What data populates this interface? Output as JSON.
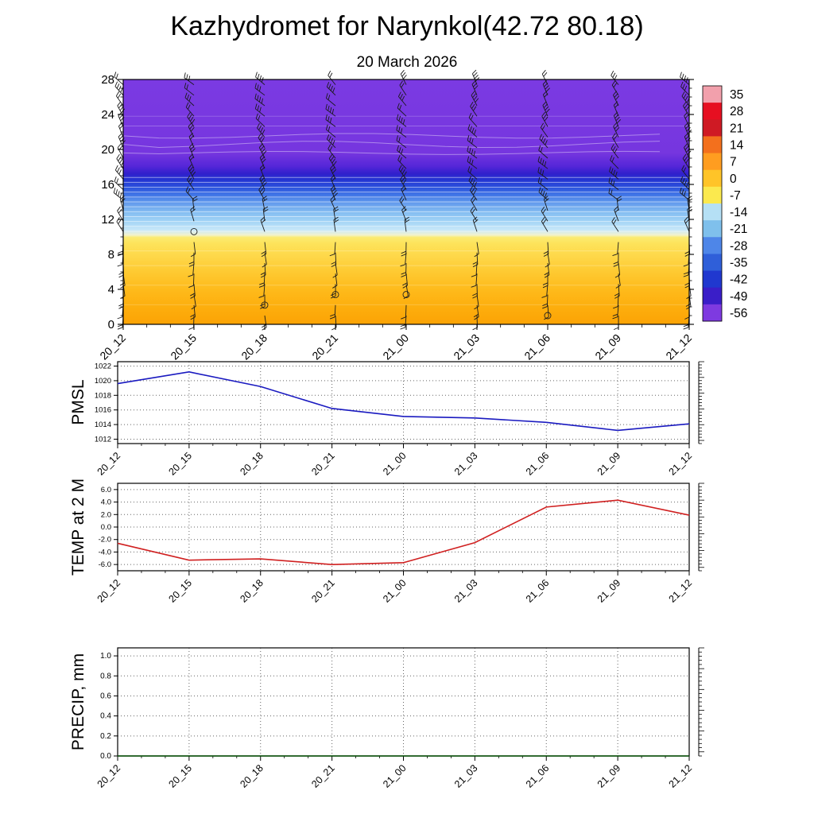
{
  "header": {
    "title": "Kazhydromet for Narynkol(42.72 80.18)",
    "subtitle": "20 March 2026"
  },
  "time_labels": [
    "20_12",
    "20_15",
    "20_18",
    "20_21",
    "21_00",
    "21_03",
    "21_06",
    "21_09",
    "21_12"
  ],
  "chart_data": [
    {
      "type": "heatmap",
      "name": "upper-air-temperature",
      "description": "time-height temperature cross-section with wind barbs",
      "ylim": [
        0,
        28
      ],
      "yticks": [
        0,
        4,
        8,
        12,
        16,
        20,
        24,
        28
      ],
      "colorbar_ticks": [
        "35",
        "28",
        "21",
        "14",
        "7",
        "0",
        "-7",
        "-14",
        "-21",
        "-28",
        "-35",
        "-42",
        "-49",
        "-56"
      ],
      "colorbar_colors": [
        "#f2a0ac",
        "#e60f21",
        "#cf1a24",
        "#f3701d",
        "#ff9d20",
        "#ffc428",
        "#fbe94e",
        "#b5e0f5",
        "#7fc0ec",
        "#4e86e8",
        "#2f5fd9",
        "#2038cf",
        "#3a1ec8",
        "#7e3ae0"
      ],
      "gradient": [
        {
          "pos": 0.0,
          "color": "#7b3ae2"
        },
        {
          "pos": 0.3,
          "color": "#7636df"
        },
        {
          "pos": 0.355,
          "color": "#5526d8"
        },
        {
          "pos": 0.385,
          "color": "#3020cc"
        },
        {
          "pos": 0.41,
          "color": "#2334d2"
        },
        {
          "pos": 0.44,
          "color": "#2c52dc"
        },
        {
          "pos": 0.47,
          "color": "#3f74e6"
        },
        {
          "pos": 0.5,
          "color": "#5f97ec"
        },
        {
          "pos": 0.54,
          "color": "#82bbf1"
        },
        {
          "pos": 0.58,
          "color": "#a3d4f6"
        },
        {
          "pos": 0.615,
          "color": "#c8e8f8"
        },
        {
          "pos": 0.635,
          "color": "#f2f2cf"
        },
        {
          "pos": 0.645,
          "color": "#fbeb72"
        },
        {
          "pos": 0.67,
          "color": "#fde35a"
        },
        {
          "pos": 0.72,
          "color": "#fed84a"
        },
        {
          "pos": 0.78,
          "color": "#fecb33"
        },
        {
          "pos": 0.86,
          "color": "#feba1b"
        },
        {
          "pos": 0.93,
          "color": "#fdae0d"
        },
        {
          "pos": 1.0,
          "color": "#fca305"
        }
      ],
      "contour_lines": [
        {
          "f": 0.15,
          "o": 0.2
        },
        {
          "f": 0.19,
          "o": 0.25
        },
        {
          "f": 0.4,
          "o": 0.5
        },
        {
          "f": 0.42,
          "o": 0.5
        },
        {
          "f": 0.44,
          "o": 0.5
        },
        {
          "f": 0.46,
          "o": 0.5
        },
        {
          "f": 0.48,
          "o": 0.5
        },
        {
          "f": 0.5,
          "o": 0.5
        },
        {
          "f": 0.52,
          "o": 0.5
        },
        {
          "f": 0.54,
          "o": 0.5
        },
        {
          "f": 0.56,
          "o": 0.5
        },
        {
          "f": 0.58,
          "o": 0.5
        },
        {
          "f": 0.6,
          "o": 0.5
        },
        {
          "f": 0.62,
          "o": 0.5
        },
        {
          "f": 0.7,
          "o": 0.25
        },
        {
          "f": 0.76,
          "o": 0.25
        },
        {
          "f": 0.84,
          "o": 0.22
        },
        {
          "f": 0.92,
          "o": 0.2
        }
      ],
      "wavy_contours": [
        {
          "f": 0.23,
          "amp": 3
        },
        {
          "f": 0.265,
          "amp": 4
        },
        {
          "f": 0.3,
          "amp": 2
        }
      ],
      "wind_barbs": {
        "min_h": 1,
        "max_h": 27.4,
        "step": 1.2,
        "calm_points": [
          {
            "i": 1,
            "h": 11
          },
          {
            "i": 2,
            "h": 2
          },
          {
            "i": 3,
            "h": 3
          },
          {
            "i": 4,
            "h": 3
          },
          {
            "i": 6,
            "h": 1
          }
        ]
      }
    },
    {
      "type": "line",
      "name": "pmsl",
      "ylabel": "PMSL",
      "values": [
        1019.6,
        1021.2,
        1019.2,
        1016.2,
        1015.1,
        1014.9,
        1014.3,
        1013.2,
        1014.1
      ],
      "yticks": [
        1012,
        1014,
        1016,
        1018,
        1020,
        1022
      ],
      "ytick_labels": [
        "1012",
        "1014",
        "1016",
        "1018",
        "1020",
        "1022"
      ],
      "ylim": [
        1011.4,
        1022.6
      ],
      "color": "#1a1ac0"
    },
    {
      "type": "line",
      "name": "temp-2m",
      "ylabel": "TEMP at 2 M",
      "values": [
        -2.6,
        -5.3,
        -5.1,
        -6.0,
        -5.7,
        -2.5,
        3.2,
        4.3,
        1.9
      ],
      "yticks": [
        -6,
        -4,
        -2,
        0,
        2,
        4,
        6
      ],
      "ytick_labels": [
        "-6.0",
        "-4.0",
        "-2.0",
        "0.0",
        "2.0",
        "4.0",
        "6.0"
      ],
      "ylim": [
        -7,
        7
      ],
      "color": "#d02020"
    },
    {
      "type": "line",
      "name": "precip",
      "ylabel": "PRECIP, mm",
      "values": [
        0,
        0,
        0,
        0,
        0,
        0,
        0,
        0,
        0
      ],
      "yticks": [
        0,
        0.2,
        0.4,
        0.6,
        0.8,
        1.0
      ],
      "ytick_labels": [
        "0.0",
        "0.2",
        "0.4",
        "0.6",
        "0.8",
        "1.0"
      ],
      "ylim": [
        0,
        1.08
      ],
      "color": "#004d00"
    }
  ]
}
